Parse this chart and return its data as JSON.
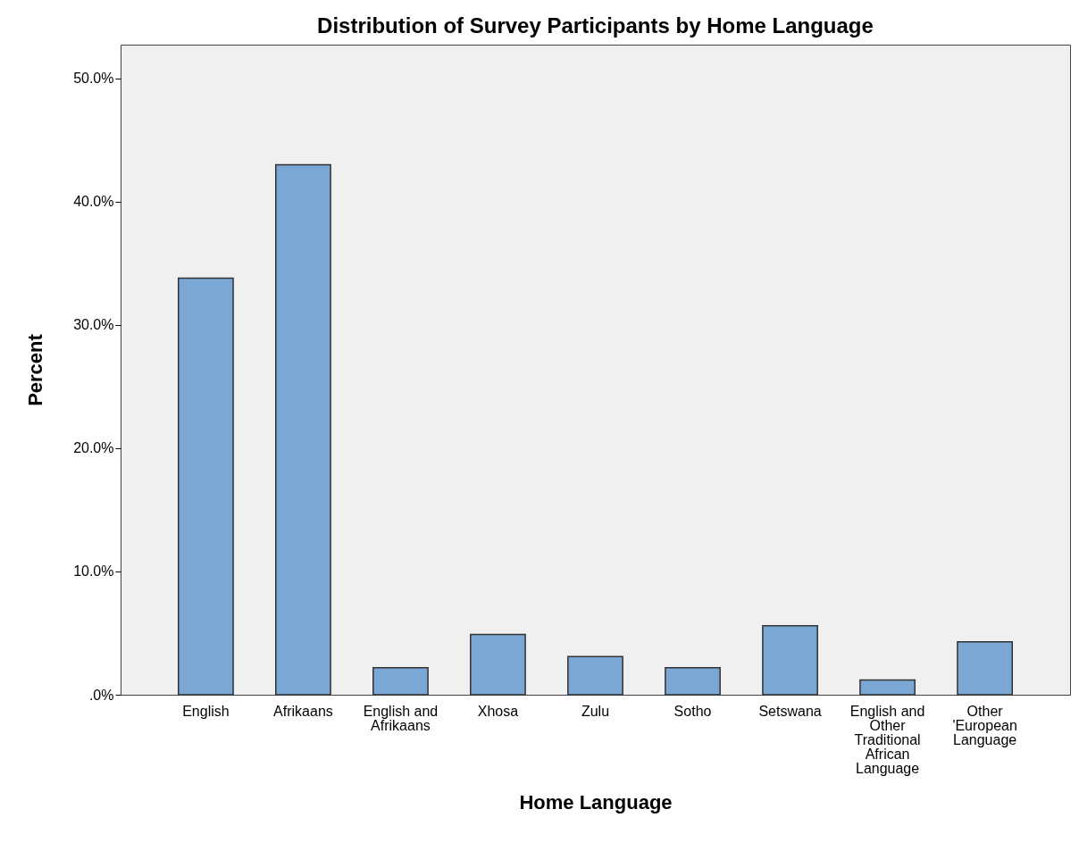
{
  "chart_data": {
    "type": "bar",
    "title": "Distribution of Survey Participants by Home Language",
    "xlabel": "Home Language",
    "ylabel": "Percent",
    "categories": [
      "English",
      "Afrikaans",
      "English and Afrikaans",
      "Xhosa",
      "Zulu",
      "Sotho",
      "Setswana",
      "English and Other Traditional African Language",
      "Other 'European Language"
    ],
    "values": [
      33.8,
      43.0,
      2.2,
      4.9,
      3.1,
      2.2,
      5.6,
      1.2,
      4.3
    ],
    "color": "#7ba7d4",
    "ylim": [
      0,
      52.75
    ],
    "yticks": [
      {
        "value": 0,
        "label": ".0%"
      },
      {
        "value": 10,
        "label": "10.0%"
      },
      {
        "value": 20,
        "label": "20.0%"
      },
      {
        "value": 30,
        "label": "30.0%"
      },
      {
        "value": 40,
        "label": "40.0%"
      },
      {
        "value": 50,
        "label": "50.0%"
      }
    ],
    "grid": false
  }
}
